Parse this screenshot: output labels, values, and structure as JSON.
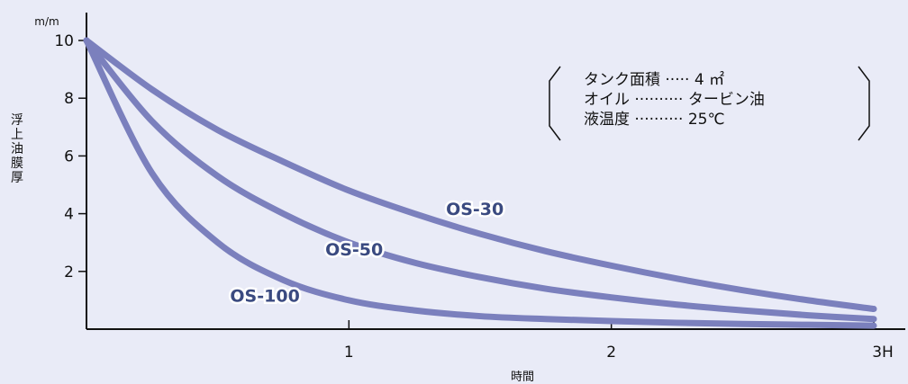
{
  "chart_data": {
    "type": "line",
    "title": "",
    "xlabel": "時間",
    "ylabel": "浮上油膜厚",
    "y_unit": "m/m",
    "xlim": [
      0,
      3
    ],
    "ylim": [
      0,
      10
    ],
    "x_ticks": [
      "1",
      "2",
      "3H"
    ],
    "x_tick_values": [
      1,
      2,
      3
    ],
    "y_ticks": [
      "2",
      "4",
      "6",
      "8",
      "10"
    ],
    "y_tick_values": [
      2,
      4,
      6,
      8,
      10
    ],
    "grid": false,
    "x": [
      0,
      0.25,
      0.5,
      0.75,
      1.0,
      1.25,
      1.5,
      1.75,
      2.0,
      2.25,
      2.5,
      2.75,
      3.0
    ],
    "series": [
      {
        "name": "OS-30",
        "values": [
          10,
          8.3,
          6.9,
          5.8,
          4.8,
          4.0,
          3.3,
          2.7,
          2.2,
          1.75,
          1.35,
          1.0,
          0.7
        ],
        "color": "#7b80bd"
      },
      {
        "name": "OS-50",
        "values": [
          10,
          7.2,
          5.3,
          4.0,
          3.0,
          2.3,
          1.8,
          1.4,
          1.1,
          0.85,
          0.65,
          0.48,
          0.35
        ],
        "color": "#7b80bd"
      },
      {
        "name": "OS-100",
        "values": [
          10,
          5.4,
          3.0,
          1.7,
          1.0,
          0.65,
          0.45,
          0.35,
          0.28,
          0.22,
          0.18,
          0.15,
          0.12
        ],
        "color": "#7b80bd"
      }
    ]
  },
  "conditions": [
    {
      "label": "タンク面積",
      "leader": "·····",
      "value": "4 ㎡"
    },
    {
      "label": "オイル",
      "leader": "··········",
      "value": "タービン油"
    },
    {
      "label": "液温度",
      "leader": "··········",
      "value": "25℃"
    }
  ],
  "colors": {
    "background": "#e9ebf7",
    "line": "#7b80bd",
    "series_label": "#3a4a80"
  }
}
